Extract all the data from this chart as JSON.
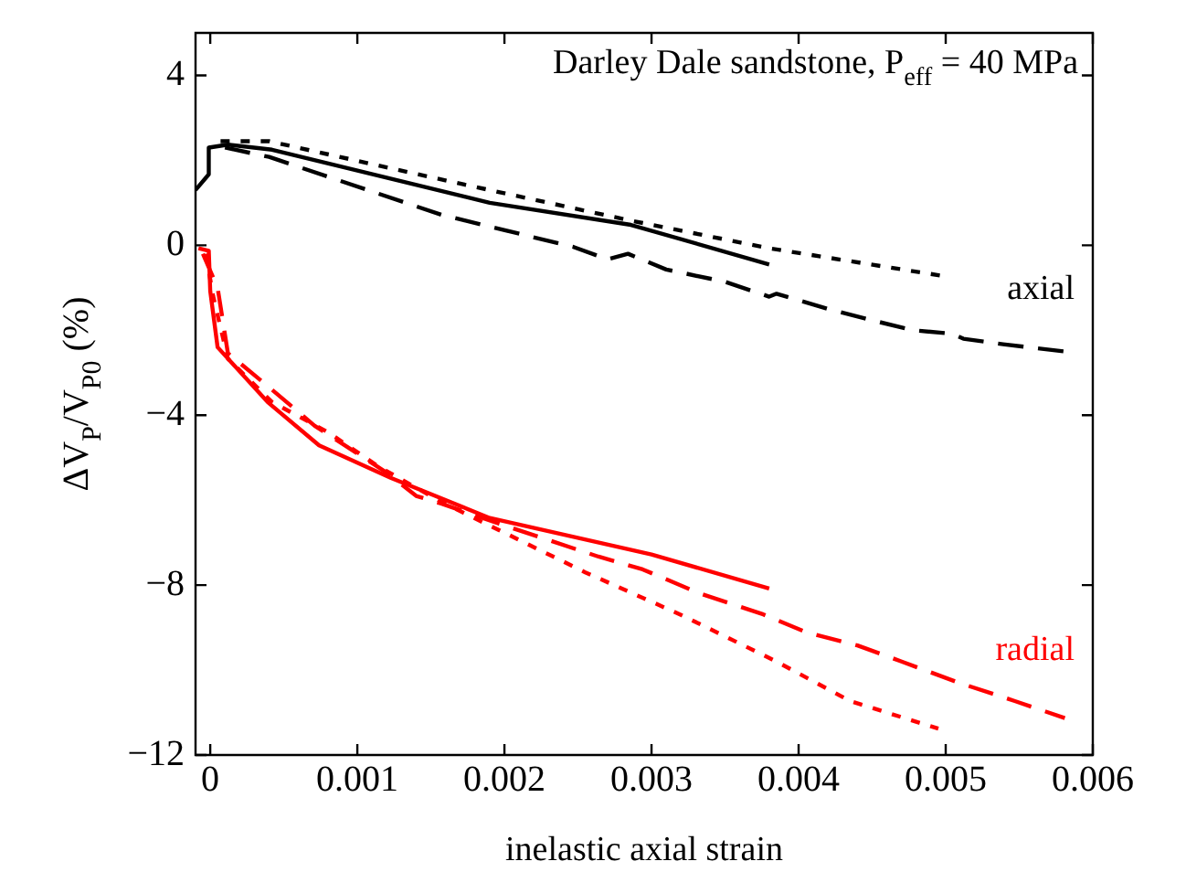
{
  "chart_data": {
    "type": "line",
    "title": "Darley Dale sandstone, P$_{eff}$ = 40 MPa",
    "xlabel": "inelastic axial strain",
    "ylabel": "ΔV$_{P}$/V$_{P0}$ (%)",
    "xlim": [
      -0.0001,
      0.006
    ],
    "xticks": [
      0,
      0.001,
      0.002,
      0.003,
      0.004,
      0.005,
      0.006
    ],
    "ylim": [
      -12,
      5
    ],
    "yticks": [
      {
        "value": -12,
        "label": "−12"
      },
      {
        "value": -8,
        "label": "−8"
      },
      {
        "value": -4,
        "label": "−4"
      },
      0,
      4
    ],
    "grid": false,
    "legend": false,
    "marker": "none",
    "annotations": [
      "axial",
      "radial"
    ],
    "series": [
      {
        "color": "#000000",
        "line_style": "solid",
        "x": [
          -0.0001,
          -1e-05,
          -1e-05,
          0.00012,
          0.00042,
          0.0019,
          0.00286,
          0.0038
        ],
        "values": [
          1.3,
          1.67,
          2.3,
          2.37,
          2.25,
          1.0,
          0.48,
          -0.45
        ]
      },
      {
        "color": "#000000",
        "line_style": "dotted",
        "x": [
          7e-05,
          0.0004,
          0.0017,
          0.00286,
          0.0038,
          0.00496
        ],
        "values": [
          2.45,
          2.45,
          1.45,
          0.58,
          -0.07,
          -0.71
        ]
      },
      {
        "color": "#000000",
        "line_style": "dashed",
        "x": [
          0.0001,
          0.0004,
          0.00157,
          0.00247,
          0.0027,
          0.00284,
          0.0031,
          0.0035,
          0.0038,
          0.00385,
          0.0042,
          0.00448,
          0.00478,
          0.00504,
          0.00512,
          0.00539,
          0.00581
        ],
        "values": [
          2.3,
          2.08,
          0.72,
          -0.04,
          -0.33,
          -0.2,
          -0.57,
          -0.86,
          -1.21,
          -1.14,
          -1.5,
          -1.75,
          -2.0,
          -2.08,
          -2.2,
          -2.33,
          -2.5
        ]
      },
      {
        "color": "#ff0000",
        "line_style": "solid",
        "x": [
          -8e-05,
          -1e-05,
          0.0,
          5e-05,
          0.00039,
          0.00074,
          0.00123,
          0.0019,
          0.003,
          0.0038
        ],
        "values": [
          -0.07,
          -0.13,
          -1.08,
          -2.4,
          -3.69,
          -4.71,
          -5.48,
          -6.42,
          -7.28,
          -8.08
        ]
      },
      {
        "color": "#ff0000",
        "line_style": "dashed",
        "x": [
          -5e-05,
          5e-05,
          0.00012,
          0.00042,
          0.00071,
          0.00119,
          0.0014,
          0.00157,
          0.00196,
          0.00264,
          0.00294,
          0.00333,
          0.00376,
          0.00406,
          0.0044,
          0.0047,
          0.00509,
          0.00547,
          0.00581
        ],
        "values": [
          -0.2,
          -1.0,
          -2.54,
          -3.4,
          -4.25,
          -5.33,
          -5.9,
          -6.08,
          -6.55,
          -7.33,
          -7.63,
          -8.2,
          -8.69,
          -9.12,
          -9.42,
          -9.8,
          -10.3,
          -10.73,
          -11.13
        ]
      },
      {
        "color": "#ff0000",
        "line_style": "dotted",
        "x": [
          -3e-05,
          2e-05,
          0.00012,
          0.00042,
          0.0008,
          0.00114,
          0.00157,
          0.00196,
          0.00255,
          0.0032,
          0.00385,
          0.00435,
          0.00495
        ],
        "values": [
          -0.2,
          -1.2,
          -2.67,
          -3.69,
          -4.4,
          -5.2,
          -6.04,
          -6.7,
          -7.7,
          -8.7,
          -9.8,
          -10.73,
          -11.38
        ]
      }
    ]
  }
}
